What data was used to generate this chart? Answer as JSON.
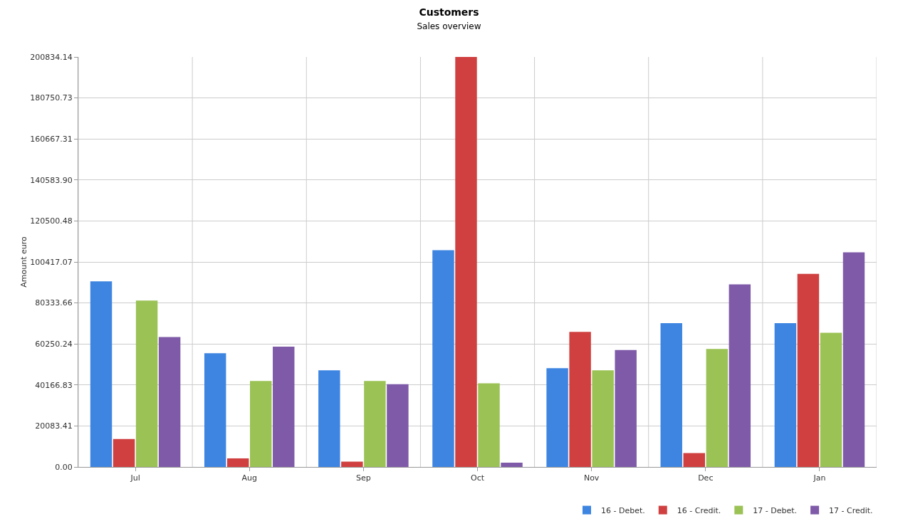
{
  "chart_data": {
    "type": "bar",
    "title": "Customers",
    "subtitle": "Sales overview",
    "ylabel": "Amount euro",
    "categories": [
      "Jul",
      "Aug",
      "Sep",
      "Oct",
      "Nov",
      "Dec",
      "Jan"
    ],
    "series": [
      {
        "name": "16 - Debet.",
        "color": "#3d85e0",
        "values": [
          90900,
          55700,
          47300,
          106200,
          48400,
          70400,
          70400
        ]
      },
      {
        "name": "16 - Credit.",
        "color": "#d04040",
        "values": [
          13700,
          4200,
          2600,
          200834.14,
          66200,
          6800,
          94600
        ]
      },
      {
        "name": "17 - Debet.",
        "color": "#9bc255",
        "values": [
          81500,
          42100,
          42100,
          41000,
          47300,
          57800,
          65700
        ]
      },
      {
        "name": "17 - Credit.",
        "color": "#7e5aa8",
        "values": [
          63600,
          58900,
          40500,
          2100,
          57300,
          89400,
          105100
        ]
      }
    ],
    "ylim": [
      0,
      200834.14
    ],
    "yticks": [
      {
        "value": 0,
        "label": "0.00"
      },
      {
        "value": 20083.41,
        "label": "20083.41"
      },
      {
        "value": 40166.83,
        "label": "40166.83"
      },
      {
        "value": 60250.24,
        "label": "60250.24"
      },
      {
        "value": 80333.66,
        "label": "80333.66"
      },
      {
        "value": 100417.07,
        "label": "100417.07"
      },
      {
        "value": 120500.48,
        "label": "120500.48"
      },
      {
        "value": 140583.9,
        "label": "140583.90"
      },
      {
        "value": 160667.31,
        "label": "160667.31"
      },
      {
        "value": 180750.73,
        "label": "180750.73"
      },
      {
        "value": 200834.14,
        "label": "200834.14"
      }
    ],
    "grid": true,
    "legend": "bottom right"
  }
}
